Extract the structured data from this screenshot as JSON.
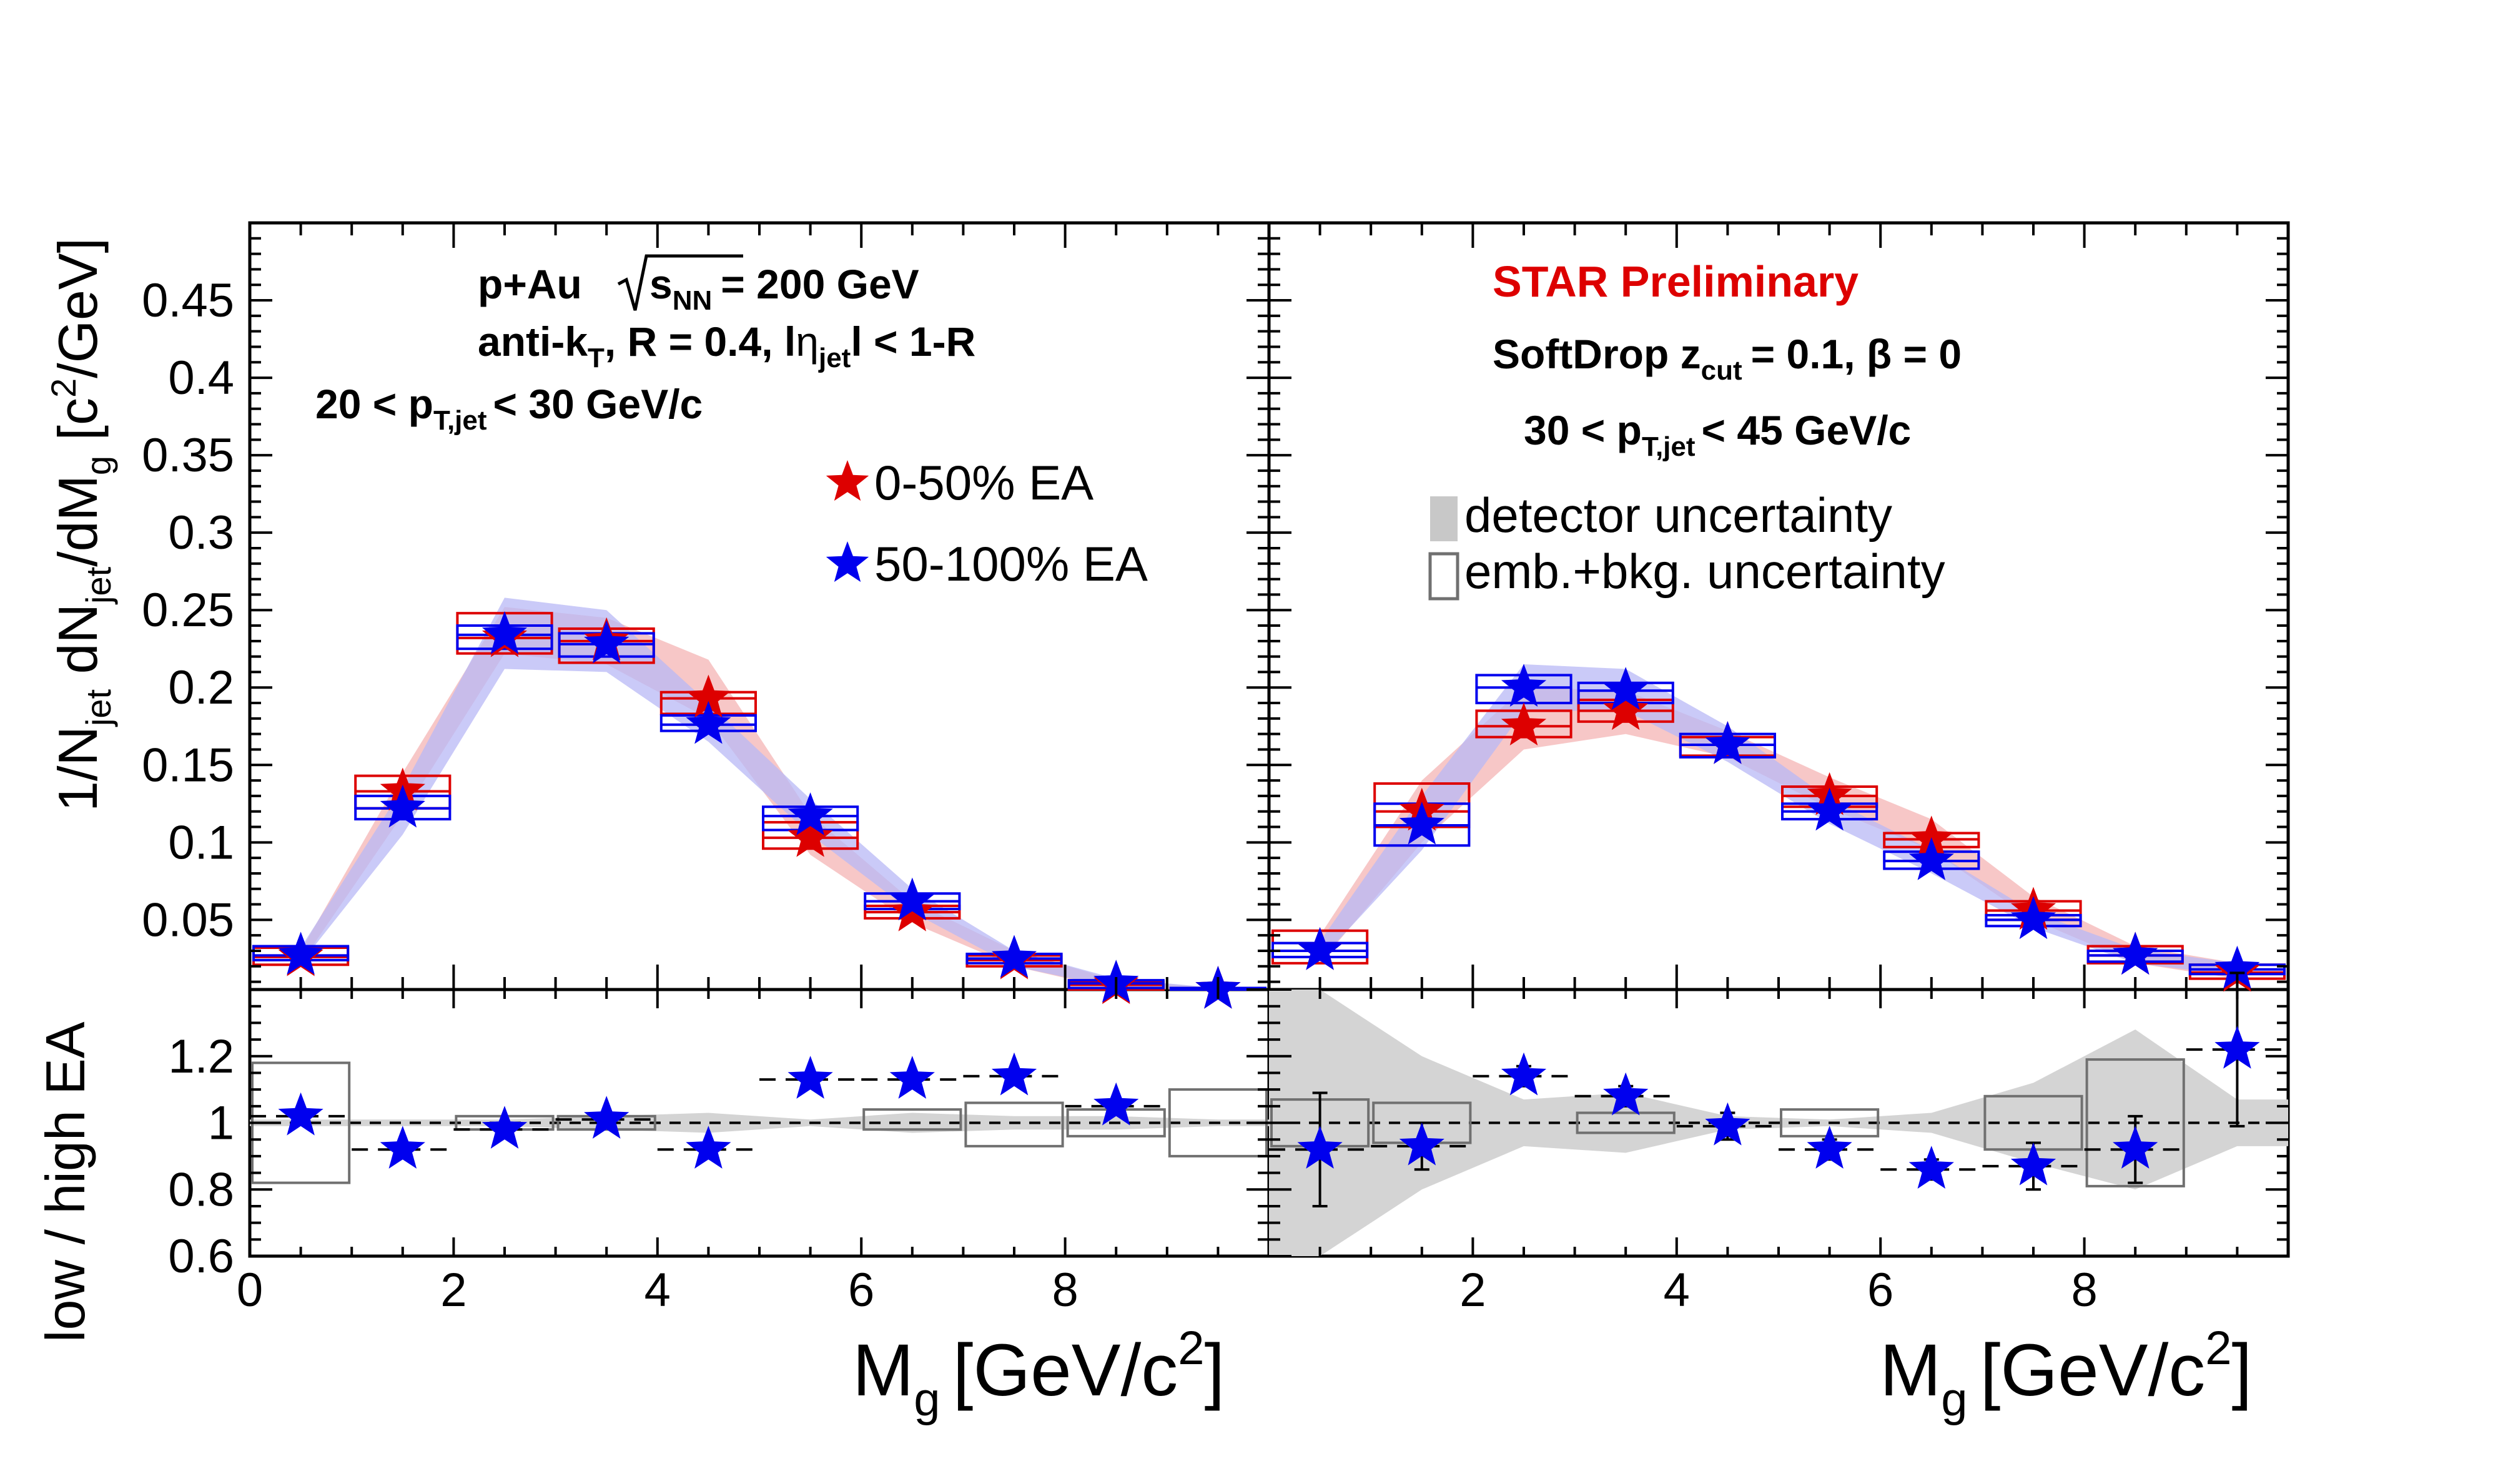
{
  "chart_data": [
    {
      "type": "scatter",
      "panel": "top-left",
      "x_bin_edges": [
        0,
        1,
        2,
        3,
        4,
        5,
        6,
        7,
        8,
        9,
        10
      ],
      "xlim": [
        0,
        10
      ],
      "ylim": [
        0.005,
        0.5
      ],
      "yticks": [
        0.05,
        0.1,
        0.15,
        0.2,
        0.25,
        0.3,
        0.35,
        0.4,
        0.45
      ],
      "ytick_labels": [
        "0.05",
        "0.1",
        "0.15",
        "0.2",
        "0.25",
        "0.3",
        "0.35",
        "0.4",
        "0.45"
      ],
      "series": [
        {
          "name": "0-50% EA",
          "color": "#dd0000",
          "values": [
            0.026,
            0.133,
            0.232,
            0.23,
            0.193,
            0.103,
            0.055,
            0.024,
            0.008,
            0.004
          ],
          "emb_bkg": [
            [
              0.021,
              0.032
            ],
            [
              0.122,
              0.143
            ],
            [
              0.222,
              0.248
            ],
            [
              0.216,
              0.238
            ],
            [
              0.183,
              0.197
            ],
            [
              0.096,
              0.113
            ],
            [
              0.051,
              0.059
            ],
            [
              0.02,
              0.027
            ],
            [
              0.005,
              0.01
            ],
            [
              0.002,
              0.006
            ]
          ],
          "detector": [
            [
              0.022,
              0.03
            ],
            [
              0.118,
              0.145
            ],
            [
              0.222,
              0.252
            ],
            [
              0.215,
              0.245
            ],
            [
              0.18,
              0.218
            ],
            [
              0.092,
              0.118
            ],
            [
              0.048,
              0.062
            ],
            [
              0.02,
              0.03
            ],
            [
              0.005,
              0.011
            ],
            [
              0.002,
              0.006
            ]
          ]
        },
        {
          "name": "50-100% EA",
          "color": "#0000ee",
          "values": [
            0.027,
            0.122,
            0.234,
            0.228,
            0.176,
            0.117,
            0.062,
            0.025,
            0.009,
            0.004
          ],
          "emb_bkg": [
            [
              0.024,
              0.033
            ],
            [
              0.115,
              0.13
            ],
            [
              0.225,
              0.24
            ],
            [
              0.22,
              0.235
            ],
            [
              0.172,
              0.182
            ],
            [
              0.108,
              0.123
            ],
            [
              0.057,
              0.067
            ],
            [
              0.022,
              0.028
            ],
            [
              0.006,
              0.011
            ],
            [
              0.002,
              0.006
            ]
          ],
          "detector": [
            [
              0.022,
              0.032
            ],
            [
              0.105,
              0.135
            ],
            [
              0.212,
              0.258
            ],
            [
              0.21,
              0.25
            ],
            [
              0.165,
              0.19
            ],
            [
              0.105,
              0.128
            ],
            [
              0.055,
              0.07
            ],
            [
              0.02,
              0.03
            ],
            [
              0.006,
              0.012
            ],
            [
              0.002,
              0.006
            ]
          ]
        }
      ],
      "ylabel": "1/N_jet dN_jet/dM_g [c²/GeV]",
      "annotations": {
        "line1_main": "p+Au",
        "line1_s": "s",
        "line1_nn": "NN",
        "line1_rest": "= 200 GeV",
        "line2_a": "anti-k",
        "line2_t": "T",
        "line2_b": ", R = 0.4, l",
        "line2_eta": "η",
        "line2_jet": "jet",
        "line2_c": "l < 1-R",
        "line3_a": "20 < p",
        "line3_sub": "T,jet",
        "line3_b": "< 30 GeV/c"
      }
    },
    {
      "type": "scatter",
      "panel": "top-right",
      "x_bin_edges": [
        0,
        1,
        2,
        3,
        4,
        5,
        6,
        7,
        8,
        9,
        10
      ],
      "xlim": [
        0,
        10
      ],
      "ylim": [
        0.005,
        0.5
      ],
      "series": [
        {
          "name": "0-50% EA",
          "color": "#dd0000",
          "values": [
            0.03,
            0.12,
            0.175,
            0.185,
            0.163,
            0.13,
            0.102,
            0.056,
            0.027,
            0.016
          ],
          "emb_bkg": [
            [
              0.022,
              0.043
            ],
            [
              0.11,
              0.138
            ],
            [
              0.168,
              0.185
            ],
            [
              0.178,
              0.192
            ],
            [
              0.156,
              0.168
            ],
            [
              0.123,
              0.136
            ],
            [
              0.097,
              0.106
            ],
            [
              0.05,
              0.062
            ],
            [
              0.022,
              0.033
            ],
            [
              0.012,
              0.021
            ]
          ],
          "detector": [
            [
              0.022,
              0.04
            ],
            [
              0.1,
              0.14
            ],
            [
              0.16,
              0.2
            ],
            [
              0.17,
              0.198
            ],
            [
              0.155,
              0.172
            ],
            [
              0.122,
              0.142
            ],
            [
              0.095,
              0.115
            ],
            [
              0.05,
              0.065
            ],
            [
              0.022,
              0.033
            ],
            [
              0.012,
              0.022
            ]
          ]
        },
        {
          "name": "50-100% EA",
          "color": "#0000ee",
          "values": [
            0.03,
            0.111,
            0.2,
            0.198,
            0.163,
            0.12,
            0.088,
            0.05,
            0.027,
            0.018
          ],
          "emb_bkg": [
            [
              0.026,
              0.035
            ],
            [
              0.098,
              0.125
            ],
            [
              0.19,
              0.208
            ],
            [
              0.19,
              0.203
            ],
            [
              0.155,
              0.17
            ],
            [
              0.115,
              0.125
            ],
            [
              0.083,
              0.094
            ],
            [
              0.046,
              0.053
            ],
            [
              0.023,
              0.03
            ],
            [
              0.015,
              0.021
            ]
          ],
          "detector": [
            [
              0.024,
              0.036
            ],
            [
              0.095,
              0.13
            ],
            [
              0.185,
              0.215
            ],
            [
              0.185,
              0.212
            ],
            [
              0.152,
              0.175
            ],
            [
              0.112,
              0.128
            ],
            [
              0.08,
              0.095
            ],
            [
              0.045,
              0.055
            ],
            [
              0.022,
              0.031
            ],
            [
              0.014,
              0.022
            ]
          ]
        }
      ],
      "annotations": {
        "preliminary": "STAR Preliminary",
        "softdrop_a": "SoftDrop z",
        "softdrop_sub": "cut",
        "softdrop_b": "= 0.1, β = 0",
        "ptbin_a": "30 < p",
        "ptbin_sub": "T,jet",
        "ptbin_b": "< 45 GeV/c"
      }
    },
    {
      "type": "scatter",
      "panel": "bottom-left",
      "xlim": [
        0,
        10
      ],
      "ylim": [
        0.6,
        1.4
      ],
      "yticks": [
        0.6,
        0.8,
        1,
        1.2
      ],
      "ytick_labels": [
        "0.6",
        "0.8",
        "1",
        "1.2"
      ],
      "xticks": [
        0,
        2,
        4,
        6,
        8
      ],
      "xtick_labels": [
        "0",
        "2",
        "4",
        "6",
        "8"
      ],
      "reference_line": 1,
      "series": [
        {
          "name": "low / high EA",
          "color": "#0000ee",
          "values": [
            1.02,
            0.92,
            0.98,
            1.01,
            0.92,
            1.13,
            1.13,
            1.14,
            1.05,
            null
          ],
          "emb_bkg": [
            [
              0.82,
              1.18
            ],
            [
              1.0,
              1.0
            ],
            [
              0.98,
              1.02
            ],
            [
              0.98,
              1.02
            ],
            [
              1.0,
              1.0
            ],
            [
              1.0,
              1.0
            ],
            [
              0.98,
              1.04
            ],
            [
              0.93,
              1.06
            ],
            [
              0.96,
              1.04
            ],
            [
              0.9,
              1.1
            ]
          ],
          "detector": [
            [
              0.99,
              1.01
            ],
            [
              0.99,
              1.01
            ],
            [
              0.99,
              1.01
            ],
            [
              0.98,
              1.02
            ],
            [
              0.97,
              1.03
            ],
            [
              0.99,
              1.01
            ],
            [
              0.97,
              1.03
            ],
            [
              0.98,
              1.02
            ],
            [
              0.98,
              1.02
            ],
            [
              0.99,
              1.01
            ]
          ]
        }
      ],
      "ylabel": "low / high EA",
      "xlabel_main": "M",
      "xlabel_sub": "g",
      "xlabel_unit": "[GeV/c",
      "xlabel_sup": "2",
      "xlabel_close": "]"
    },
    {
      "type": "scatter",
      "panel": "bottom-right",
      "xlim": [
        0,
        10
      ],
      "ylim": [
        0.6,
        1.4
      ],
      "xticks": [
        2,
        4,
        6,
        8
      ],
      "xtick_labels": [
        "2",
        "4",
        "6",
        "8"
      ],
      "reference_line": 1,
      "series": [
        {
          "name": "low / high EA",
          "color": "#0000ee",
          "values": [
            0.92,
            0.93,
            1.14,
            1.08,
            0.99,
            0.92,
            0.86,
            0.87,
            0.92,
            1.22
          ],
          "stat_err": [
            0.17,
            0.07,
            0.03,
            0.03,
            0.04,
            0.03,
            0.03,
            0.07,
            0.1,
            0.23
          ],
          "emb_bkg": [
            [
              0.93,
              1.07
            ],
            [
              0.94,
              1.06
            ],
            [
              1.0,
              1.0
            ],
            [
              0.97,
              1.03
            ],
            [
              1.0,
              1.0
            ],
            [
              0.96,
              1.04
            ],
            [
              1.0,
              1.0
            ],
            [
              0.92,
              1.08
            ],
            [
              0.81,
              1.19
            ],
            [
              1.0,
              1.0
            ]
          ],
          "detector": [
            [
              0.6,
              1.4
            ],
            [
              0.8,
              1.2
            ],
            [
              0.93,
              1.07
            ],
            [
              0.91,
              1.09
            ],
            [
              0.98,
              1.02
            ],
            [
              0.99,
              1.01
            ],
            [
              0.97,
              1.03
            ],
            [
              0.88,
              1.12
            ],
            [
              0.8,
              1.28
            ],
            [
              0.93,
              1.07
            ]
          ]
        }
      ],
      "xlabel_main": "M",
      "xlabel_sub": "g",
      "xlabel_unit": "[GeV/c",
      "xlabel_sup": "2",
      "xlabel_close": "]"
    }
  ],
  "legend": {
    "series1": "0-50% EA",
    "series2": "50-100% EA",
    "detector": "detector uncertainty",
    "emb_bkg": "emb.+bkg. uncertainty"
  },
  "ylabel_parts": {
    "a": "1/N",
    "a_sub": "jet",
    "b": " dN",
    "b_sub": "jet",
    "c": "/dM",
    "c_sub": "g",
    "d": " [c",
    "d_sup": "2",
    "e": "/GeV]"
  },
  "colors": {
    "red": "#dd0000",
    "blue": "#0000ee",
    "red_band": "#f4b4b4",
    "blue_band": "#b8b8f6",
    "gray_band": "#d4d4d4",
    "gray_box": "#707070"
  }
}
